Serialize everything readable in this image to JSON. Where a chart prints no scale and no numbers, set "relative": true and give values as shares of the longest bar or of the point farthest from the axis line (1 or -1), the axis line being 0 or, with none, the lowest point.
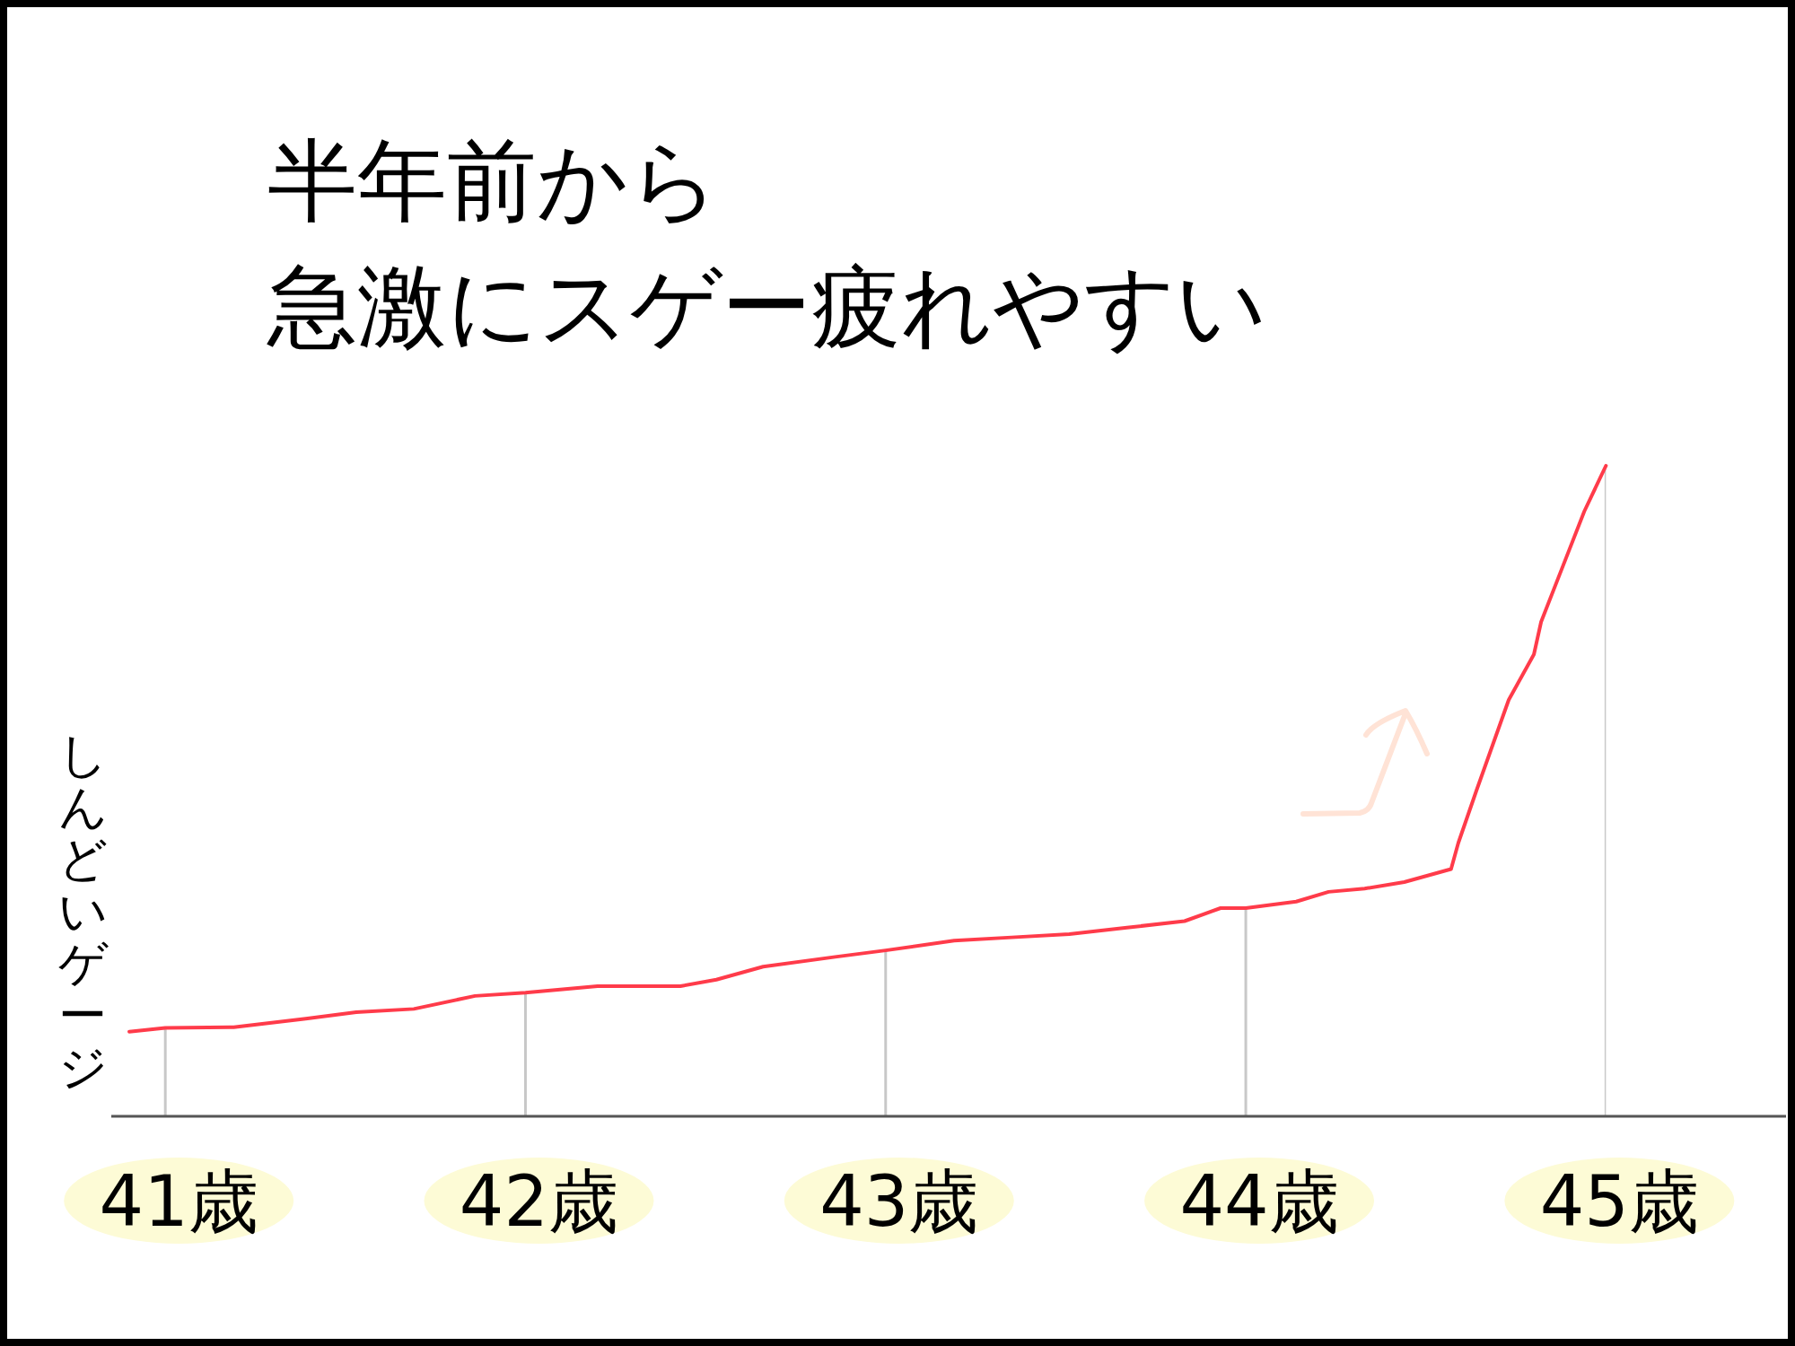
{
  "chart_data": {
    "type": "line",
    "title": "半年前から",
    "subtitle": "急激にスゲー疲れやすい",
    "ylabel": "しんどいゲージ",
    "relative": true,
    "color": "#ff3b4a",
    "line_style": "solid",
    "grid": "x",
    "x": [
      40.9,
      41.0,
      41.19,
      41.39,
      41.53,
      41.69,
      41.86,
      42.0,
      42.2,
      42.43,
      42.53,
      42.66,
      42.86,
      43.0,
      43.19,
      43.35,
      43.51,
      43.67,
      43.83,
      43.93,
      44.0,
      44.14,
      44.23,
      44.33,
      44.44,
      44.57,
      44.59,
      44.64,
      44.73,
      44.8,
      44.82,
      44.88,
      44.94,
      45.0
    ],
    "values": [
      0.13,
      0.136,
      0.137,
      0.15,
      0.16,
      0.165,
      0.185,
      0.19,
      0.2,
      0.2,
      0.21,
      0.23,
      0.245,
      0.255,
      0.27,
      0.275,
      0.28,
      0.29,
      0.3,
      0.32,
      0.32,
      0.33,
      0.345,
      0.35,
      0.36,
      0.38,
      0.42,
      0.5,
      0.64,
      0.71,
      0.76,
      0.845,
      0.93,
      1.0
    ],
    "xlim": [
      40.85,
      45.5
    ],
    "xticks": [
      {
        "value": 41,
        "label": "41歳"
      },
      {
        "value": 42,
        "label": "42歳"
      },
      {
        "value": 43,
        "label": "43歳"
      },
      {
        "value": 44,
        "label": "44歳"
      },
      {
        "value": 45,
        "label": "45歳"
      }
    ]
  }
}
